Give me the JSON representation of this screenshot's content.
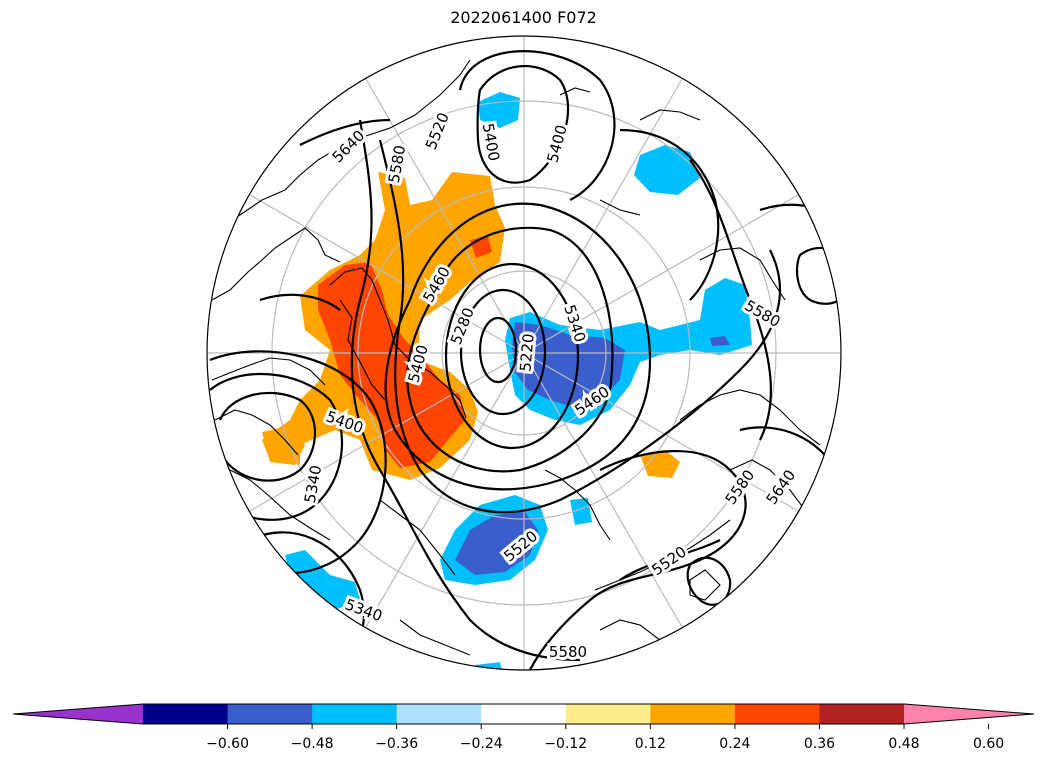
{
  "title": "2022061400 F072",
  "map": {
    "projection": "north-polar-stereographic",
    "fields": [
      "500 hPa geopotential height contours",
      "shaded anomaly"
    ],
    "contour_labels": [
      "5640",
      "5520",
      "5580",
      "5400",
      "5400",
      "5460",
      "5280",
      "5220",
      "5340",
      "5460",
      "5580",
      "5400",
      "5340",
      "5520",
      "5580",
      "5640",
      "5520",
      "5340",
      "5580",
      "5400"
    ]
  },
  "colorbar": {
    "extend": "both",
    "colors": [
      "#9932CC",
      "#00008B",
      "#3A5FCD",
      "#00BFFF",
      "#B0E2FF",
      "#FFFFFF",
      "#FFEC8B",
      "#FFA500",
      "#FF4500",
      "#B22222",
      "#FF82AB"
    ],
    "ticks": [
      "−0.60",
      "−0.48",
      "−0.36",
      "−0.24",
      "−0.12",
      "0.12",
      "0.24",
      "0.36",
      "0.48",
      "0.60"
    ]
  }
}
